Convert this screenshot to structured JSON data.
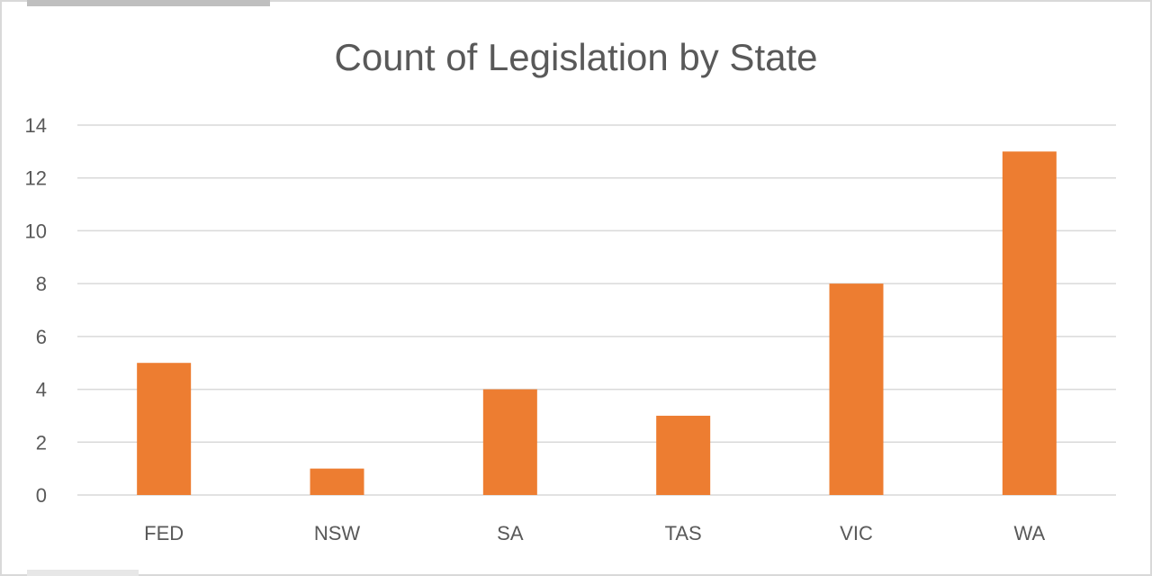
{
  "chart_data": {
    "type": "bar",
    "title": "Count of Legislation by State",
    "categories": [
      "FED",
      "NSW",
      "SA",
      "TAS",
      "VIC",
      "WA"
    ],
    "values": [
      5,
      1,
      4,
      3,
      8,
      13
    ],
    "xlabel": "",
    "ylabel": "",
    "ylim": [
      0,
      14
    ],
    "yticks": [
      0,
      2,
      4,
      6,
      8,
      10,
      12,
      14
    ],
    "grid": true,
    "legend": "none",
    "bar_color": "#ED7D31",
    "gridline_color": "#D9D9D9"
  }
}
